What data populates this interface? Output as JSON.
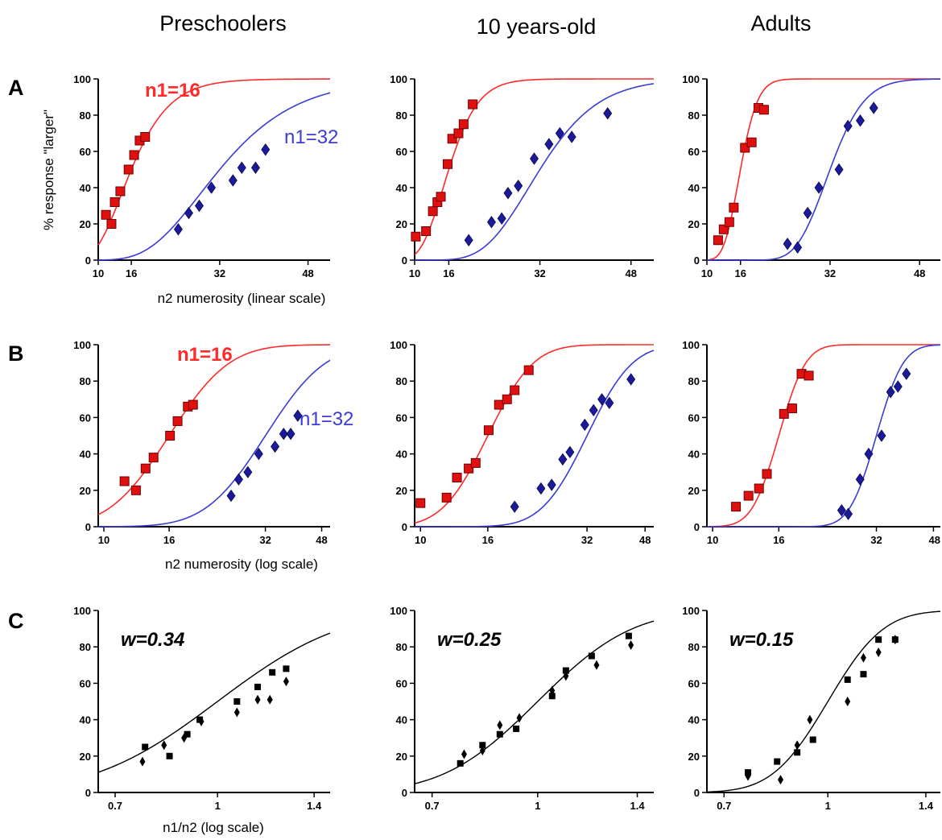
{
  "figure": {
    "column_titles": [
      "Preschoolers",
      "10 years-old",
      "Adults"
    ],
    "row_letters": [
      "A",
      "B",
      "C"
    ],
    "ylabel": "% response \"larger\"",
    "xlabel_row_a": "n2 numerosity (linear scale)",
    "xlabel_row_b": "n2 numerosity (log scale)",
    "xlabel_row_c": "n1/n2 (log scale)",
    "legend_n1_16": "n1=16",
    "legend_n1_32": "n1=32",
    "colors": {
      "red_series": "#ff2a2a",
      "red_marker": "#e01010",
      "blue_series": "#3b3bd6",
      "blue_marker": "#1a1a9a",
      "black": "#000000"
    }
  },
  "chart_data": [
    {
      "id": "A1",
      "type": "scatter",
      "scale": "linear",
      "xlim": [
        10,
        52
      ],
      "ylim": [
        0,
        100
      ],
      "xticks": [
        10,
        16,
        32,
        48
      ],
      "yticks": [
        0,
        20,
        40,
        60,
        80,
        100
      ],
      "series": [
        {
          "name": "n1=16",
          "color": "red",
          "w": 0.34,
          "n1": 16,
          "points": [
            [
              11.4,
              25
            ],
            [
              12.4,
              20
            ],
            [
              13.0,
              32
            ],
            [
              14.0,
              38
            ],
            [
              15.5,
              50
            ],
            [
              16.5,
              58
            ],
            [
              17.5,
              66
            ],
            [
              18.5,
              68
            ]
          ]
        },
        {
          "name": "n1=32",
          "color": "blue",
          "w": 0.34,
          "n1": 32,
          "points": [
            [
              24.5,
              17
            ],
            [
              26.4,
              26
            ],
            [
              28.3,
              30
            ],
            [
              30.5,
              40
            ],
            [
              34.4,
              44
            ],
            [
              36.0,
              51
            ],
            [
              38.5,
              51
            ],
            [
              40.3,
              61
            ]
          ]
        }
      ]
    },
    {
      "id": "A2",
      "type": "scatter",
      "scale": "linear",
      "xlim": [
        10,
        52
      ],
      "ylim": [
        0,
        100
      ],
      "xticks": [
        10,
        16,
        32,
        48
      ],
      "yticks": [
        0,
        20,
        40,
        60,
        80,
        100
      ],
      "series": [
        {
          "color": "red",
          "w": 0.25,
          "n1": 16,
          "points": [
            [
              10.2,
              13
            ],
            [
              12.0,
              16
            ],
            [
              13.2,
              27
            ],
            [
              14.0,
              32
            ],
            [
              14.6,
              35
            ],
            [
              15.8,
              53
            ],
            [
              16.6,
              67
            ],
            [
              17.7,
              70
            ],
            [
              18.6,
              75
            ],
            [
              20.2,
              86
            ]
          ]
        },
        {
          "color": "blue",
          "w": 0.25,
          "n1": 32,
          "points": [
            [
              19.5,
              11
            ],
            [
              23.5,
              21
            ],
            [
              25.3,
              23
            ],
            [
              26.4,
              37
            ],
            [
              28.2,
              41
            ],
            [
              31.0,
              56
            ],
            [
              33.6,
              64
            ],
            [
              35.5,
              70
            ],
            [
              37.6,
              68
            ],
            [
              43.9,
              81
            ]
          ]
        }
      ]
    },
    {
      "id": "A3",
      "type": "scatter",
      "scale": "linear",
      "xlim": [
        10,
        52
      ],
      "ylim": [
        0,
        100
      ],
      "xticks": [
        10,
        16,
        32,
        48
      ],
      "yticks": [
        0,
        20,
        40,
        60,
        80,
        100
      ],
      "series": [
        {
          "color": "red",
          "w": 0.15,
          "n1": 16,
          "points": [
            [
              12.0,
              11
            ],
            [
              13.0,
              17
            ],
            [
              14.0,
              21
            ],
            [
              14.8,
              29
            ],
            [
              16.8,
              62
            ],
            [
              18.0,
              65
            ],
            [
              19.2,
              84
            ],
            [
              20.2,
              83
            ]
          ]
        },
        {
          "color": "blue",
          "w": 0.15,
          "n1": 32,
          "points": [
            [
              24.4,
              9
            ],
            [
              26.2,
              7
            ],
            [
              28.0,
              26
            ],
            [
              30.0,
              40
            ],
            [
              33.6,
              50
            ],
            [
              35.2,
              74
            ],
            [
              37.4,
              77
            ],
            [
              39.8,
              84
            ]
          ]
        }
      ]
    },
    {
      "id": "B1",
      "type": "scatter",
      "scale": "log",
      "xlim": [
        9.6,
        51
      ],
      "ylim": [
        0,
        100
      ],
      "xticks": [
        10,
        16,
        32,
        48
      ],
      "yticks": [
        0,
        20,
        40,
        60,
        80,
        100
      ],
      "series": [
        {
          "name": "n1=16",
          "color": "red",
          "w": 0.34,
          "n1": 16,
          "points": [
            [
              11.6,
              25
            ],
            [
              12.6,
              20
            ],
            [
              13.5,
              32
            ],
            [
              14.3,
              38
            ],
            [
              16.1,
              50
            ],
            [
              17.0,
              58
            ],
            [
              18.3,
              66
            ],
            [
              19.0,
              67
            ]
          ]
        },
        {
          "name": "n1=32",
          "color": "blue",
          "w": 0.34,
          "n1": 32,
          "points": [
            [
              25.0,
              17
            ],
            [
              26.4,
              26
            ],
            [
              28.2,
              30
            ],
            [
              30.5,
              40
            ],
            [
              34.3,
              44
            ],
            [
              36.5,
              51
            ],
            [
              38.4,
              51
            ],
            [
              40.4,
              61
            ]
          ]
        }
      ]
    },
    {
      "id": "B2",
      "type": "scatter",
      "scale": "log",
      "xlim": [
        9.6,
        51
      ],
      "ylim": [
        0,
        100
      ],
      "xticks": [
        10,
        16,
        32,
        48
      ],
      "yticks": [
        0,
        20,
        40,
        60,
        80,
        100
      ],
      "series": [
        {
          "color": "red",
          "w": 0.25,
          "n1": 16,
          "points": [
            [
              10.0,
              13
            ],
            [
              12.0,
              16
            ],
            [
              12.9,
              27
            ],
            [
              14.0,
              32
            ],
            [
              14.7,
              35
            ],
            [
              16.1,
              53
            ],
            [
              17.3,
              67
            ],
            [
              18.3,
              70
            ],
            [
              19.3,
              75
            ],
            [
              21.3,
              86
            ]
          ]
        },
        {
          "color": "blue",
          "w": 0.25,
          "n1": 32,
          "points": [
            [
              19.3,
              11
            ],
            [
              23.2,
              21
            ],
            [
              25.0,
              23
            ],
            [
              27.0,
              37
            ],
            [
              28.4,
              41
            ],
            [
              31.5,
              56
            ],
            [
              33.5,
              64
            ],
            [
              35.5,
              70
            ],
            [
              37.4,
              68
            ],
            [
              43.5,
              81
            ]
          ]
        }
      ]
    },
    {
      "id": "B3",
      "type": "scatter",
      "scale": "log",
      "xlim": [
        9.6,
        51
      ],
      "ylim": [
        0,
        100
      ],
      "xticks": [
        10,
        16,
        32,
        48
      ],
      "yticks": [
        0,
        20,
        40,
        60,
        80,
        100
      ],
      "series": [
        {
          "color": "red",
          "w": 0.15,
          "n1": 16,
          "points": [
            [
              11.8,
              11
            ],
            [
              12.9,
              17
            ],
            [
              13.9,
              21
            ],
            [
              14.7,
              29
            ],
            [
              16.6,
              62
            ],
            [
              17.6,
              65
            ],
            [
              18.8,
              84
            ],
            [
              19.8,
              83
            ]
          ]
        },
        {
          "color": "blue",
          "w": 0.15,
          "n1": 32,
          "points": [
            [
              25.0,
              9
            ],
            [
              26.2,
              7
            ],
            [
              28.5,
              26
            ],
            [
              30.3,
              40
            ],
            [
              33.2,
              50
            ],
            [
              35.4,
              74
            ],
            [
              37.3,
              77
            ],
            [
              39.6,
              84
            ]
          ]
        }
      ]
    },
    {
      "id": "C1",
      "type": "scatter",
      "scale": "log",
      "xlim": [
        0.66,
        1.48
      ],
      "ylim": [
        0,
        100
      ],
      "xticks": [
        0.7,
        1,
        1.4
      ],
      "yticks": [
        0,
        20,
        40,
        60,
        80,
        100
      ],
      "w": 0.34,
      "annotation": "w=0.34",
      "series": [
        {
          "marker": "square",
          "points": [
            [
              0.777,
              25
            ],
            [
              0.846,
              20
            ],
            [
              0.9,
              32
            ],
            [
              0.94,
              40
            ],
            [
              1.07,
              50
            ],
            [
              1.15,
              58
            ],
            [
              1.21,
              66
            ],
            [
              1.27,
              68
            ]
          ]
        },
        {
          "marker": "diamond",
          "points": [
            [
              0.77,
              17
            ],
            [
              0.83,
              26
            ],
            [
              0.89,
              30
            ],
            [
              0.945,
              39
            ],
            [
              1.07,
              44
            ],
            [
              1.15,
              51
            ],
            [
              1.2,
              51
            ],
            [
              1.27,
              61
            ]
          ]
        }
      ]
    },
    {
      "id": "C2",
      "type": "scatter",
      "scale": "log",
      "xlim": [
        0.66,
        1.48
      ],
      "ylim": [
        0,
        100
      ],
      "xticks": [
        0.7,
        1,
        1.4
      ],
      "yticks": [
        0,
        20,
        40,
        60,
        80,
        100
      ],
      "w": 0.25,
      "annotation": "w=0.25",
      "series": [
        {
          "marker": "square",
          "points": [
            [
              0.77,
              16
            ],
            [
              0.83,
              26
            ],
            [
              0.88,
              32
            ],
            [
              0.93,
              35
            ],
            [
              1.05,
              53
            ],
            [
              1.1,
              67
            ],
            [
              1.2,
              75
            ],
            [
              1.36,
              86
            ]
          ]
        },
        {
          "marker": "diamond",
          "points": [
            [
              0.78,
              21
            ],
            [
              0.83,
              23
            ],
            [
              0.88,
              37
            ],
            [
              0.94,
              41
            ],
            [
              1.05,
              56
            ],
            [
              1.1,
              64
            ],
            [
              1.22,
              70
            ],
            [
              1.37,
              81
            ]
          ]
        }
      ]
    },
    {
      "id": "C3",
      "type": "scatter",
      "scale": "log",
      "xlim": [
        0.66,
        1.48
      ],
      "ylim": [
        0,
        100
      ],
      "xticks": [
        0.7,
        1,
        1.4
      ],
      "yticks": [
        0,
        20,
        40,
        60,
        80,
        100
      ],
      "w": 0.15,
      "annotation": "w=0.15",
      "series": [
        {
          "marker": "square",
          "points": [
            [
              0.76,
              11
            ],
            [
              0.84,
              17
            ],
            [
              0.9,
              22
            ],
            [
              0.95,
              29
            ],
            [
              1.07,
              62
            ],
            [
              1.13,
              65
            ],
            [
              1.19,
              84
            ],
            [
              1.26,
              84
            ]
          ]
        },
        {
          "marker": "diamond",
          "points": [
            [
              0.76,
              9
            ],
            [
              0.85,
              7
            ],
            [
              0.9,
              26
            ],
            [
              0.94,
              40
            ],
            [
              1.07,
              50
            ],
            [
              1.13,
              74
            ],
            [
              1.19,
              77
            ],
            [
              1.26,
              84
            ]
          ]
        }
      ]
    }
  ]
}
